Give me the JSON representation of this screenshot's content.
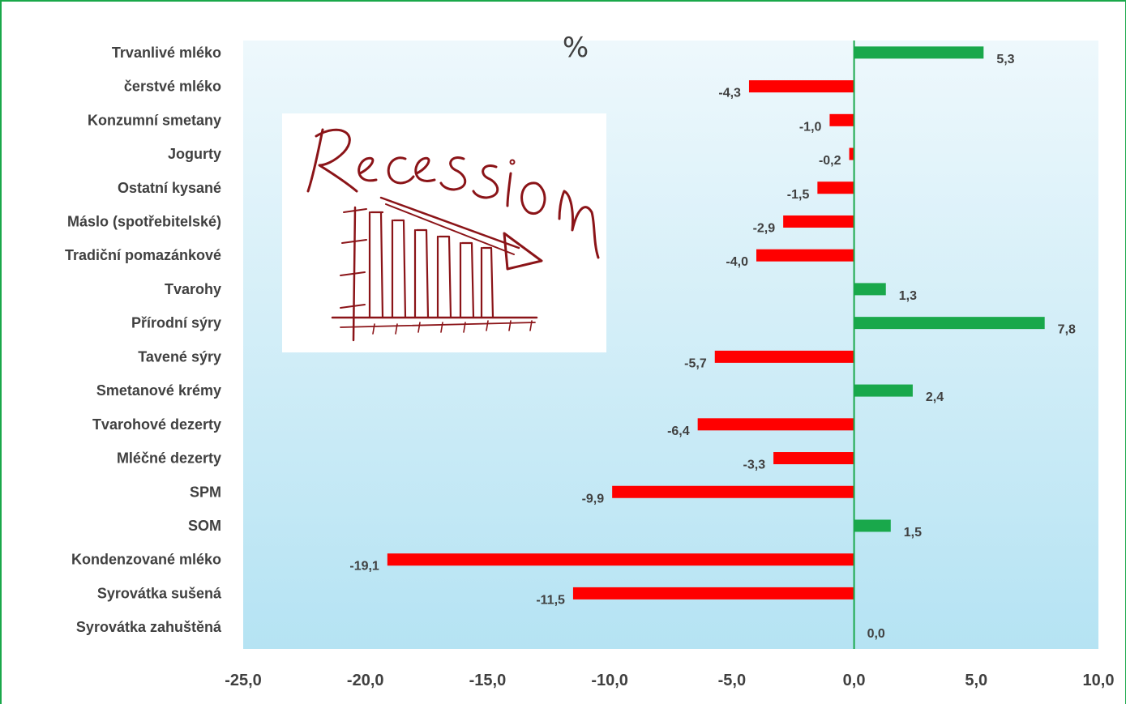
{
  "chart_data": {
    "type": "bar",
    "orientation": "horizontal",
    "unit_label": "%",
    "categories": [
      "Trvanlivé mléko",
      "čerstvé mléko",
      "Konzumní smetany",
      "Jogurty",
      "Ostatní kysané",
      "Máslo (spotřebitelské)",
      "Tradiční pomazánkové",
      "Tvarohy",
      "Přírodní sýry",
      "Tavené sýry",
      "Smetanové krémy",
      "Tvarohové dezerty",
      "Mléčné dezerty",
      "SPM",
      "SOM",
      "Kondenzované mléko",
      "Syrovátka sušená",
      "Syrovátka zahuštěná"
    ],
    "values": [
      5.3,
      -4.3,
      -1.0,
      -0.2,
      -1.5,
      -2.9,
      -4.0,
      1.3,
      7.8,
      -5.7,
      2.4,
      -6.4,
      -3.3,
      -9.9,
      1.5,
      -19.1,
      -11.5,
      0.0
    ],
    "value_labels": [
      "5,3",
      "-4,3",
      "-1,0",
      "-0,2",
      "-1,5",
      "-2,9",
      "-4,0",
      "1,3",
      "7,8",
      "-5,7",
      "2,4",
      "-6,4",
      "-3,3",
      "-9,9",
      "1,5",
      "-19,1",
      "-11,5",
      "0,0"
    ],
    "xlim": [
      -25,
      10
    ],
    "xticks": [
      -25,
      -20,
      -15,
      -10,
      -5,
      0,
      5,
      10
    ],
    "xtick_labels": [
      "-25,0",
      "-20,0",
      "-15,0",
      "-10,0",
      "-5,0",
      "0,0",
      "5,0",
      "10,0"
    ],
    "colors": {
      "positive": "#19a84b",
      "negative": "#ff0000",
      "zero_line": "#19a84b",
      "plot_top": "#eef8fc",
      "plot_bottom": "#b5e3f3"
    },
    "grid": false,
    "legend": "none"
  },
  "inset_image": {
    "icon": "recession-sketch-icon",
    "caption": "Recession"
  }
}
